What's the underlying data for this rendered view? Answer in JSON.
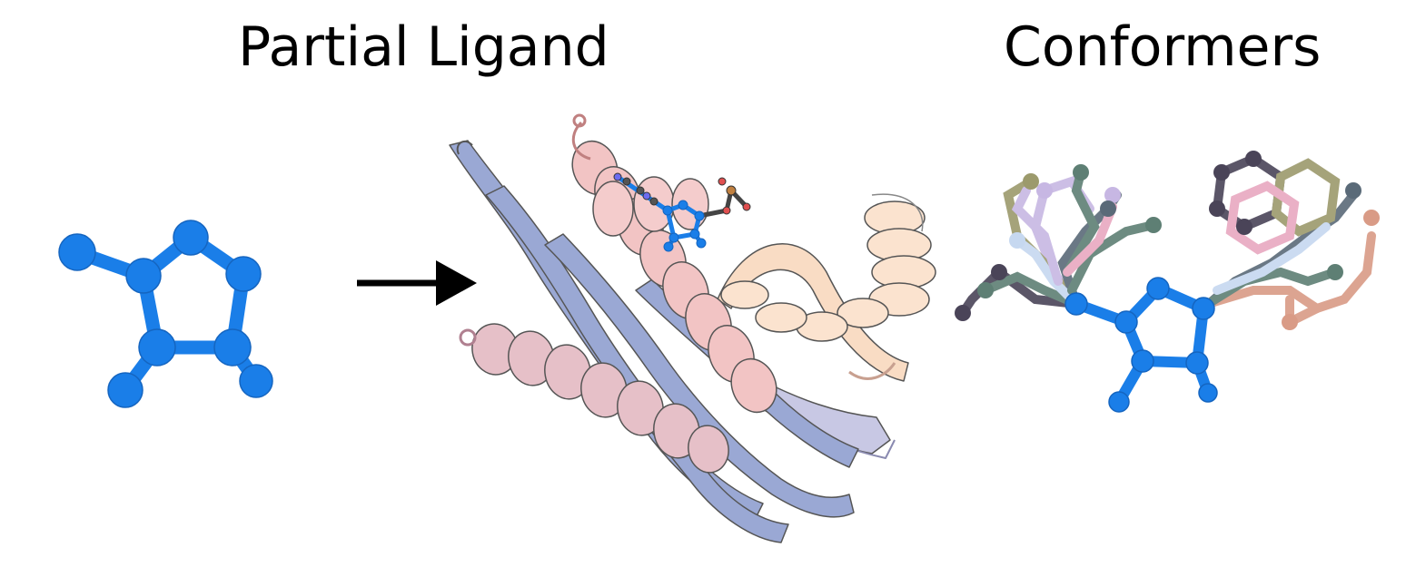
{
  "titles": {
    "left": "Partial Ligand",
    "right": "Conformers"
  },
  "colors": {
    "ligand_blue": "#1a7ee8",
    "helix_pink": "#f2c4c4",
    "strand_blue": "#9aa8d4",
    "helix_peach": "#f9dcc4",
    "helix_mauve": "#e6c0c8",
    "conformer_palette": [
      "#4a4458",
      "#5e7f74",
      "#c7b7e3",
      "#9c9a6c",
      "#d99b86",
      "#c6d8f0",
      "#e8a8c0",
      "#5a6a78"
    ]
  },
  "icons": {
    "arrow": "right-arrow-icon",
    "fragment": "partial-ligand-fragment-icon",
    "protein": "protein-ribbon-icon",
    "conformers": "conformer-overlay-icon"
  }
}
